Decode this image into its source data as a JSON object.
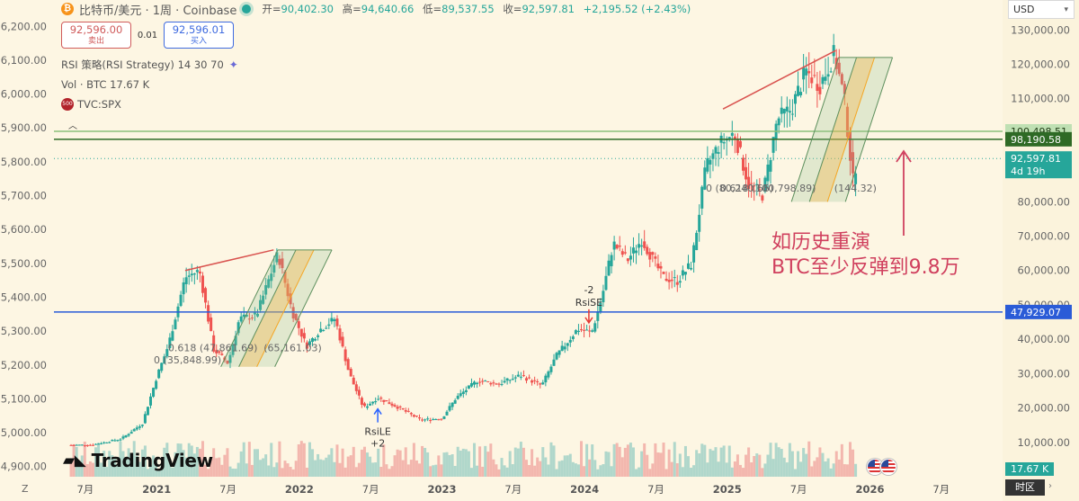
{
  "header": {
    "symbol_label": "比特币/美元 · 1周 · Coinbase",
    "open_label": "开=",
    "open": "90,402.30",
    "high_label": "高=",
    "high": "94,640.66",
    "low_label": "低=",
    "low": "89,537.55",
    "close_label": "收=",
    "close": "92,597.81",
    "change": "+2,195.52 (+2.43%)"
  },
  "trade": {
    "sell_price": "92,596.00",
    "sell_label": "卖出",
    "spread": "0.01",
    "buy_price": "92,596.01",
    "buy_label": "买入"
  },
  "indicators": {
    "strategy": "RSI 策略(RSI Strategy) 14 30 70",
    "volume": "Vol · BTC  17.67 K",
    "compare_badge": "500",
    "compare": "TVC:SPX"
  },
  "currency": "USD",
  "timezone_button": "时区",
  "corner_label": "Z",
  "logo": "TradingView",
  "annotation": {
    "line1": "如历史重演",
    "line2": "BTC至少反弹到9.8万"
  },
  "colors": {
    "up": "#26a69a",
    "down": "#ef5350",
    "blue_line": "#2a5bd7",
    "green_line": "#2e6a25",
    "annotation": "#d0405e",
    "background": "#fdf6e3"
  },
  "chart_data": {
    "type": "candlestick",
    "timeframe": "1W",
    "left_axis": {
      "ticks": [
        "6,200.00",
        "6,100.00",
        "6,000.00",
        "5,900.00",
        "5,800.00",
        "5,700.00",
        "5,600.00",
        "5,500.00",
        "5,400.00",
        "5,300.00",
        "5,200.00",
        "5,100.00",
        "5,000.00",
        "4,900.00"
      ],
      "range": [
        4870,
        6230
      ]
    },
    "right_axis": {
      "ticks": [
        "130,000.00",
        "120,000.00",
        "110,000.00",
        "100,000.00",
        "90,000.00",
        "80,000.00",
        "70,000.00",
        "60,000.00",
        "50,000.00",
        "40,000.00",
        "30,000.00",
        "20,000.00",
        "10,000.00"
      ],
      "range": [
        0,
        134000
      ]
    },
    "x_ticks": [
      "7月",
      "2021",
      "7月",
      "2022",
      "7月",
      "2023",
      "7月",
      "2024",
      "7月",
      "2025",
      "7月",
      "2026",
      "7月"
    ],
    "x_ticks_numeric": [
      2020.5,
      2021,
      2021.5,
      2022,
      2022.5,
      2023,
      2023.5,
      2024,
      2024.5,
      2025,
      2025.5,
      2026,
      2026.5
    ],
    "x_range": [
      2020.28,
      2026.93
    ],
    "price_anchors": [
      [
        2020.4,
        9200
      ],
      [
        2020.55,
        9300
      ],
      [
        2020.75,
        11000
      ],
      [
        2020.9,
        15500
      ],
      [
        2021.0,
        29000
      ],
      [
        2021.08,
        38000
      ],
      [
        2021.2,
        58000
      ],
      [
        2021.3,
        60000
      ],
      [
        2021.4,
        37000
      ],
      [
        2021.5,
        33000
      ],
      [
        2021.58,
        46000
      ],
      [
        2021.7,
        47000
      ],
      [
        2021.85,
        65000
      ],
      [
        2021.95,
        48000
      ],
      [
        2022.05,
        38000
      ],
      [
        2022.15,
        43000
      ],
      [
        2022.25,
        46000
      ],
      [
        2022.35,
        30000
      ],
      [
        2022.45,
        20000
      ],
      [
        2022.55,
        23000
      ],
      [
        2022.7,
        20000
      ],
      [
        2022.85,
        16500
      ],
      [
        2023.0,
        17000
      ],
      [
        2023.1,
        23000
      ],
      [
        2023.25,
        28000
      ],
      [
        2023.4,
        27000
      ],
      [
        2023.55,
        29500
      ],
      [
        2023.7,
        26500
      ],
      [
        2023.8,
        35000
      ],
      [
        2023.95,
        43000
      ],
      [
        2024.05,
        42000
      ],
      [
        2024.12,
        52000
      ],
      [
        2024.2,
        68000
      ],
      [
        2024.3,
        63000
      ],
      [
        2024.4,
        69000
      ],
      [
        2024.55,
        58000
      ],
      [
        2024.65,
        57000
      ],
      [
        2024.75,
        62000
      ],
      [
        2024.85,
        90000
      ],
      [
        2024.95,
        97000
      ],
      [
        2025.05,
        100000
      ],
      [
        2025.15,
        85000
      ],
      [
        2025.25,
        82000
      ],
      [
        2025.35,
        104000
      ],
      [
        2025.45,
        107000
      ],
      [
        2025.55,
        118000
      ],
      [
        2025.65,
        114000
      ],
      [
        2025.75,
        123000
      ],
      [
        2025.82,
        110000
      ],
      [
        2025.88,
        86000
      ],
      [
        2025.91,
        92597.81
      ]
    ],
    "horizontal_lines": [
      {
        "label": "100,498.51",
        "value": 100498.51
      },
      {
        "label": "98,190.58",
        "value": 98190.58
      },
      {
        "label": "47,929.07",
        "value": 47929.07
      }
    ],
    "last_price": {
      "label": "92,597.81",
      "value": 92597.81,
      "countdown": "4d 19h"
    },
    "volume_label": "17.67 K",
    "signals": [
      {
        "text": "-2",
        "text2": "RsiSE",
        "x": 2024.03,
        "price": 44000
      },
      {
        "text": "RsiLE",
        "text2": "+2",
        "x": 2022.55,
        "price": 20000
      }
    ],
    "fib_labels": [
      {
        "text": "0 (35,848.99)",
        "x": 2020.98,
        "price": 33000
      },
      {
        "text": "0.618 (47,861.69)",
        "x": 2021.08,
        "price": 36500
      },
      {
        "text": "(65,161.03)",
        "x": 2021.75,
        "price": 36500
      },
      {
        "text": "0 (80,240.66)",
        "x": 2024.85,
        "price": 83000
      },
      {
        "text": "0.618 (100,798.89)",
        "x": 2024.95,
        "price": 83000
      },
      {
        "text": "(144.32)",
        "x": 2025.75,
        "price": 83000
      }
    ]
  }
}
